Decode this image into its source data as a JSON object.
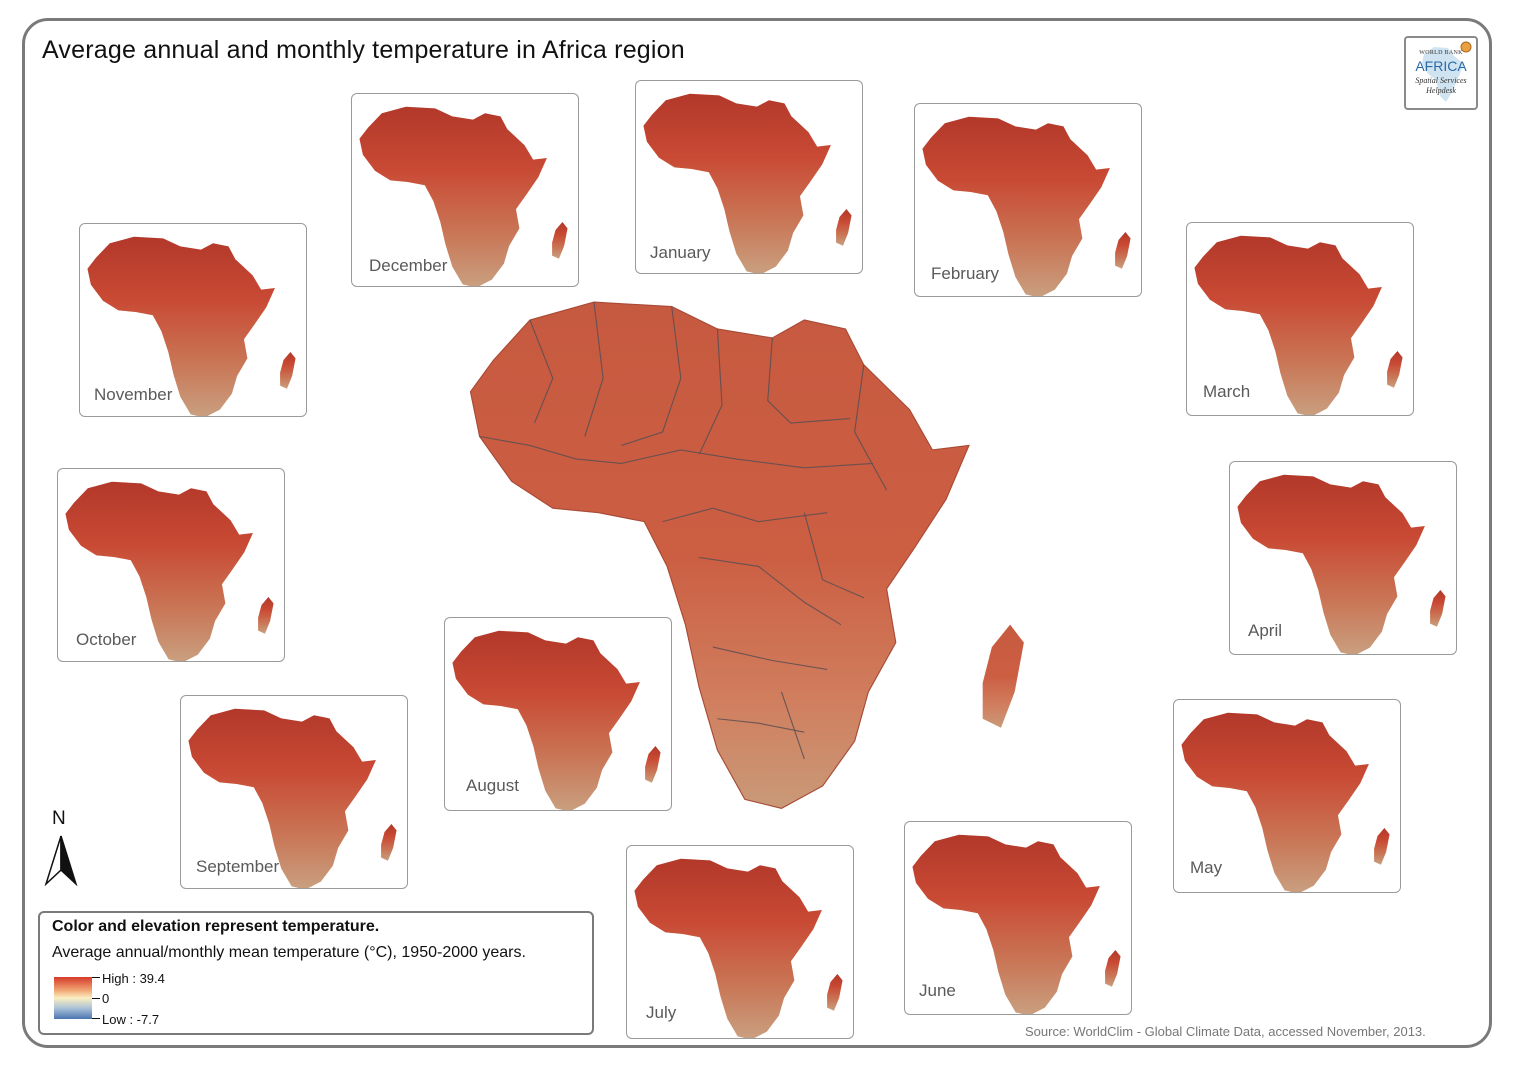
{
  "title": "Average annual and monthly temperature in Africa region",
  "logo": {
    "line1": "WORLD BANK",
    "line2": "AFRICA",
    "line3": "Spatial Services",
    "line4": "Helpdesk"
  },
  "months": [
    "December",
    "January",
    "February",
    "November",
    "March",
    "October",
    "April",
    "August",
    "September",
    "May",
    "July",
    "June"
  ],
  "north_label": "N",
  "legend": {
    "heading": "Color and elevation represent temperature.",
    "subtitle": "Average annual/monthly mean temperature (°C), 1950-2000 years.",
    "high": "High : 39.4",
    "mid": "0",
    "low": "Low : -7.7",
    "high_color": "#d63a2a",
    "mid_color": "#fbeec0",
    "low_color": "#4a74b0"
  },
  "source": "Source: WorldClim - Global Climate Data, accessed November, 2013.",
  "map_colors": {
    "land": "#c9583c",
    "land_dark": "#a83a2a",
    "south": "#c98a66",
    "borders": "#5a4e52"
  }
}
